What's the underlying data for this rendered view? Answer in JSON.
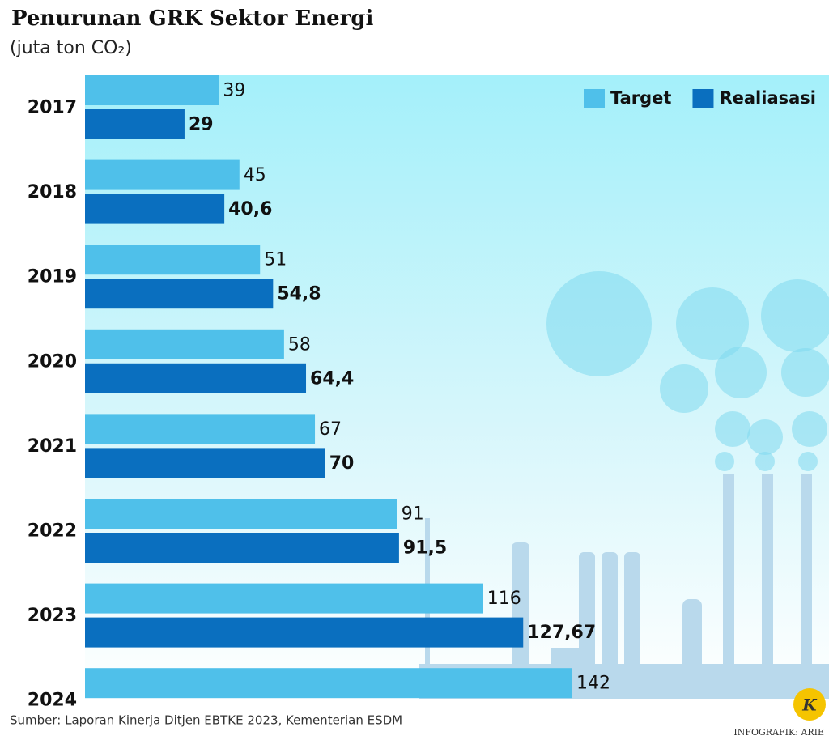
{
  "chart_data": {
    "type": "bar",
    "orientation": "horizontal",
    "title": "Penurunan GRK Sektor Energi",
    "subtitle": "(juta ton CO₂)",
    "categories": [
      "2017",
      "2018",
      "2019",
      "2020",
      "2021",
      "2022",
      "2023",
      "2024"
    ],
    "series": [
      {
        "name": "Target",
        "color": "#4fc0ea",
        "values": [
          39,
          45,
          51,
          58,
          67,
          91,
          116,
          142
        ]
      },
      {
        "name": "Realiasasi",
        "color": "#0a6fbf",
        "values": [
          29,
          40.6,
          54.8,
          64.4,
          70,
          91.5,
          127.67,
          null
        ],
        "value_labels": [
          "29",
          "40,6",
          "54,8",
          "64,4",
          "70",
          "91,5",
          "127,67",
          null
        ]
      }
    ],
    "legend": "top-right",
    "source": "Sumber: Laporan Kinerja Ditjen EBTKE 2023, Kementerian ESDM",
    "credit": "INFOGRAFIK: ARIE",
    "logo": "K"
  }
}
